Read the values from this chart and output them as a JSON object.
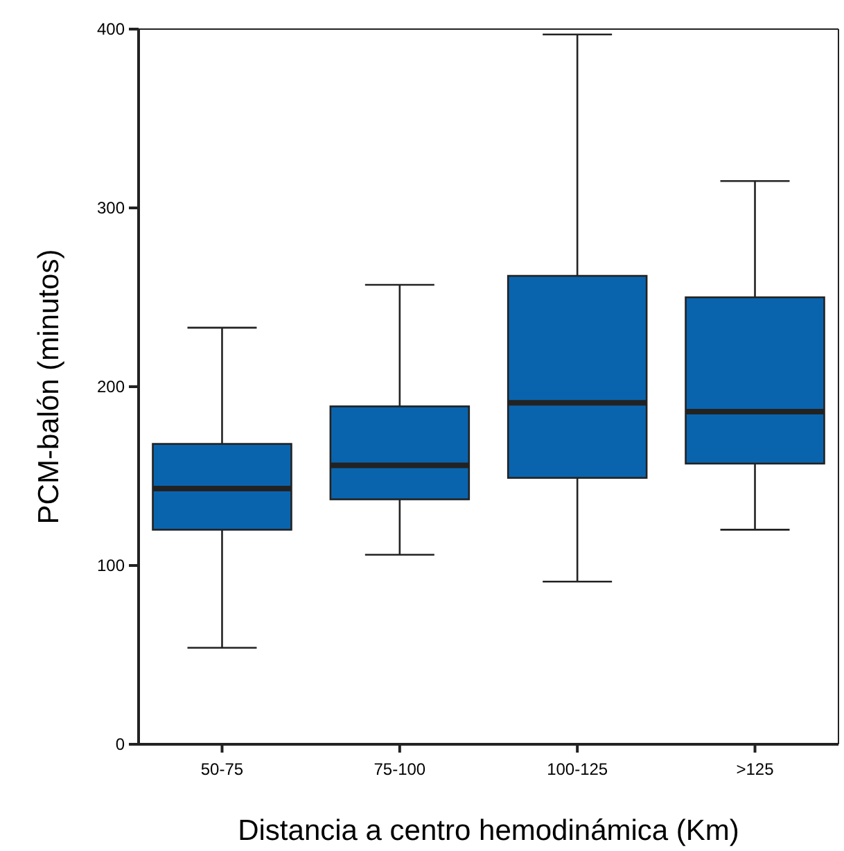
{
  "chart_data": {
    "type": "box",
    "xlabel": "Distancia a centro hemodinámica (Km)",
    "ylabel": "PCM-balón (minutos)",
    "categories": [
      "50-75",
      "75-100",
      "100-125",
      ">125"
    ],
    "color": "#0a64ad",
    "boxes": [
      {
        "low": 54,
        "q1": 120,
        "median": 143,
        "q3": 168,
        "high": 233
      },
      {
        "low": 106,
        "q1": 137,
        "median": 156,
        "q3": 189,
        "high": 257
      },
      {
        "low": 91,
        "q1": 149,
        "median": 191,
        "q3": 262,
        "high": 397
      },
      {
        "low": 120,
        "q1": 157,
        "median": 186,
        "q3": 250,
        "high": 315
      }
    ],
    "ylim": [
      0,
      400
    ],
    "yticks": [
      0,
      100,
      200,
      300,
      400
    ],
    "grid": false
  }
}
